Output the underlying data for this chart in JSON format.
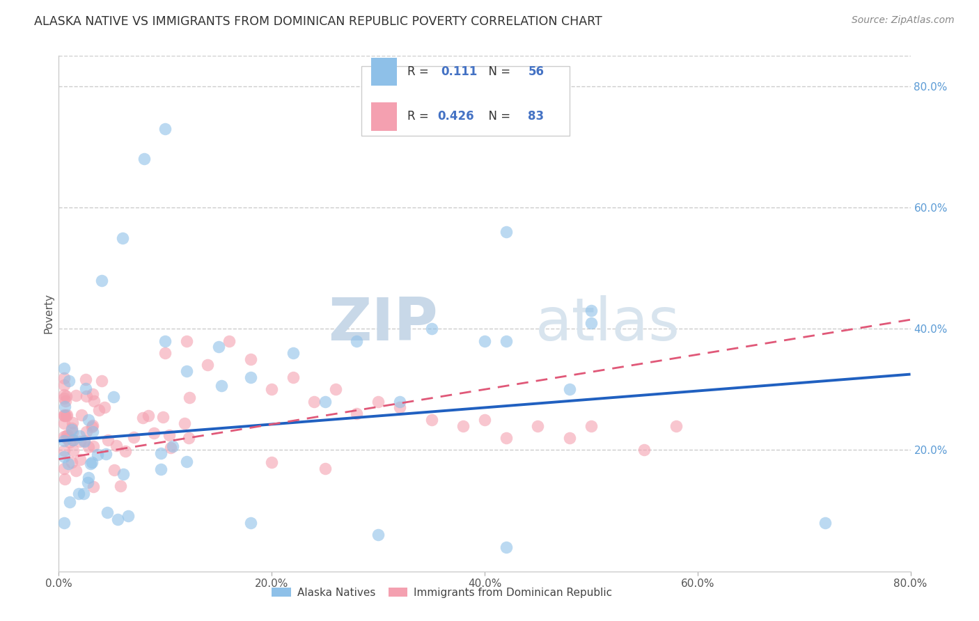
{
  "title": "ALASKA NATIVE VS IMMIGRANTS FROM DOMINICAN REPUBLIC POVERTY CORRELATION CHART",
  "source": "Source: ZipAtlas.com",
  "ylabel": "Poverty",
  "xlim": [
    0.0,
    0.8
  ],
  "ylim": [
    0.0,
    0.85
  ],
  "xticks": [
    0.0,
    0.2,
    0.4,
    0.6,
    0.8
  ],
  "yticks": [
    0.2,
    0.4,
    0.6,
    0.8
  ],
  "xticklabels": [
    "0.0%",
    "20.0%",
    "40.0%",
    "60.0%",
    "80.0%"
  ],
  "yticklabels": [
    "20.0%",
    "40.0%",
    "60.0%",
    "80.0%"
  ],
  "watermark_zip": "ZIP",
  "watermark_atlas": "atlas",
  "legend_label1": "Alaska Natives",
  "legend_label2": "Immigrants from Dominican Republic",
  "R1": "0.111",
  "N1": "56",
  "R2": "0.426",
  "N2": "83",
  "color1": "#8ec0e8",
  "color2": "#f4a0b0",
  "line_color1": "#2060c0",
  "line_color2": "#e05878",
  "blue_text": "#4472c4",
  "title_color": "#333333",
  "source_color": "#888888",
  "grid_color": "#cccccc",
  "tick_color": "#5b9bd5",
  "alaska_line_start_y": 0.215,
  "alaska_line_end_y": 0.325,
  "dominican_line_start_y": 0.185,
  "dominican_line_end_y": 0.415
}
